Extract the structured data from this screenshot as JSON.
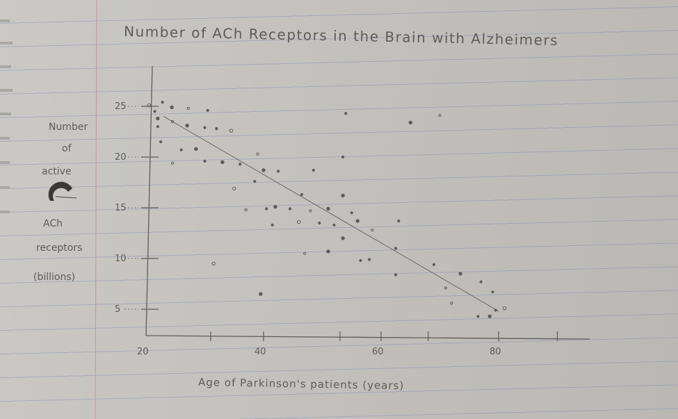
{
  "chart_data": {
    "type": "scatter",
    "title": "Number of ACh Receptors in the Brain with Alzheimers",
    "xlabel": "Age of Parkinson's patients (years)",
    "ylabel_lines": [
      "Number",
      "of",
      "active",
      "ACh",
      "receptors",
      "(billions)"
    ],
    "xlim": [
      20,
      90
    ],
    "ylim": [
      3,
      27
    ],
    "x_ticks": [
      20,
      40,
      60,
      80
    ],
    "x_tick_labels": [
      "20",
      "40",
      "60",
      "80"
    ],
    "y_ticks": [
      5,
      10,
      15,
      20,
      25
    ],
    "y_tick_labels": [
      "5",
      "10",
      "15",
      "20",
      "25"
    ],
    "grid": false,
    "legend": "none",
    "trendline": {
      "x": [
        23,
        80
      ],
      "y": [
        24,
        4.8
      ]
    },
    "points": [
      {
        "x": 20.5,
        "y": 25.1
      },
      {
        "x": 21.5,
        "y": 24.5
      },
      {
        "x": 22.8,
        "y": 25.4
      },
      {
        "x": 24.4,
        "y": 24.9
      },
      {
        "x": 27.2,
        "y": 24.8
      },
      {
        "x": 30.5,
        "y": 24.6
      },
      {
        "x": 22.0,
        "y": 23.8
      },
      {
        "x": 22.0,
        "y": 23.0
      },
      {
        "x": 24.5,
        "y": 23.5
      },
      {
        "x": 27.0,
        "y": 23.1
      },
      {
        "x": 30.0,
        "y": 22.9
      },
      {
        "x": 32.0,
        "y": 22.8
      },
      {
        "x": 34.5,
        "y": 22.6
      },
      {
        "x": 22.5,
        "y": 21.5
      },
      {
        "x": 26.0,
        "y": 20.7
      },
      {
        "x": 28.5,
        "y": 20.8
      },
      {
        "x": 24.5,
        "y": 19.4
      },
      {
        "x": 30.0,
        "y": 19.6
      },
      {
        "x": 33.0,
        "y": 19.5
      },
      {
        "x": 36.0,
        "y": 19.3
      },
      {
        "x": 39.0,
        "y": 20.3
      },
      {
        "x": 40.0,
        "y": 18.7
      },
      {
        "x": 42.5,
        "y": 18.6
      },
      {
        "x": 48.5,
        "y": 18.7
      },
      {
        "x": 35.0,
        "y": 16.9
      },
      {
        "x": 38.5,
        "y": 17.6
      },
      {
        "x": 46.5,
        "y": 16.3
      },
      {
        "x": 53.5,
        "y": 16.2
      },
      {
        "x": 37.0,
        "y": 14.8
      },
      {
        "x": 40.5,
        "y": 14.9
      },
      {
        "x": 42.0,
        "y": 15.1
      },
      {
        "x": 44.5,
        "y": 14.9
      },
      {
        "x": 48.0,
        "y": 14.7
      },
      {
        "x": 51.0,
        "y": 14.9
      },
      {
        "x": 55.0,
        "y": 14.5
      },
      {
        "x": 41.5,
        "y": 13.3
      },
      {
        "x": 46.0,
        "y": 13.6
      },
      {
        "x": 49.5,
        "y": 13.5
      },
      {
        "x": 52.0,
        "y": 13.3
      },
      {
        "x": 56.0,
        "y": 13.7
      },
      {
        "x": 58.5,
        "y": 12.8
      },
      {
        "x": 63.0,
        "y": 13.7
      },
      {
        "x": 53.5,
        "y": 12.0
      },
      {
        "x": 62.5,
        "y": 11.0
      },
      {
        "x": 47.0,
        "y": 10.5
      },
      {
        "x": 51.0,
        "y": 10.7
      },
      {
        "x": 56.5,
        "y": 9.8
      },
      {
        "x": 58.0,
        "y": 9.9
      },
      {
        "x": 31.5,
        "y": 9.5
      },
      {
        "x": 69.0,
        "y": 9.4
      },
      {
        "x": 62.5,
        "y": 8.4
      },
      {
        "x": 73.5,
        "y": 8.5
      },
      {
        "x": 71.0,
        "y": 7.1
      },
      {
        "x": 77.0,
        "y": 7.7
      },
      {
        "x": 39.5,
        "y": 6.5
      },
      {
        "x": 79.0,
        "y": 6.7
      },
      {
        "x": 72.0,
        "y": 5.6
      },
      {
        "x": 78.5,
        "y": 4.3
      },
      {
        "x": 76.5,
        "y": 4.3
      },
      {
        "x": 79.5,
        "y": 4.9
      },
      {
        "x": 81.0,
        "y": 5.1
      },
      {
        "x": 53.5,
        "y": 20.0
      },
      {
        "x": 54.0,
        "y": 24.3
      },
      {
        "x": 65.0,
        "y": 23.4
      },
      {
        "x": 70.0,
        "y": 24.1
      }
    ],
    "colors": {
      "ink": "#5e5c5a",
      "paper": "#c6c4c1",
      "margin_line": "#c79aa5",
      "rule_line": "#7d8db0"
    }
  }
}
